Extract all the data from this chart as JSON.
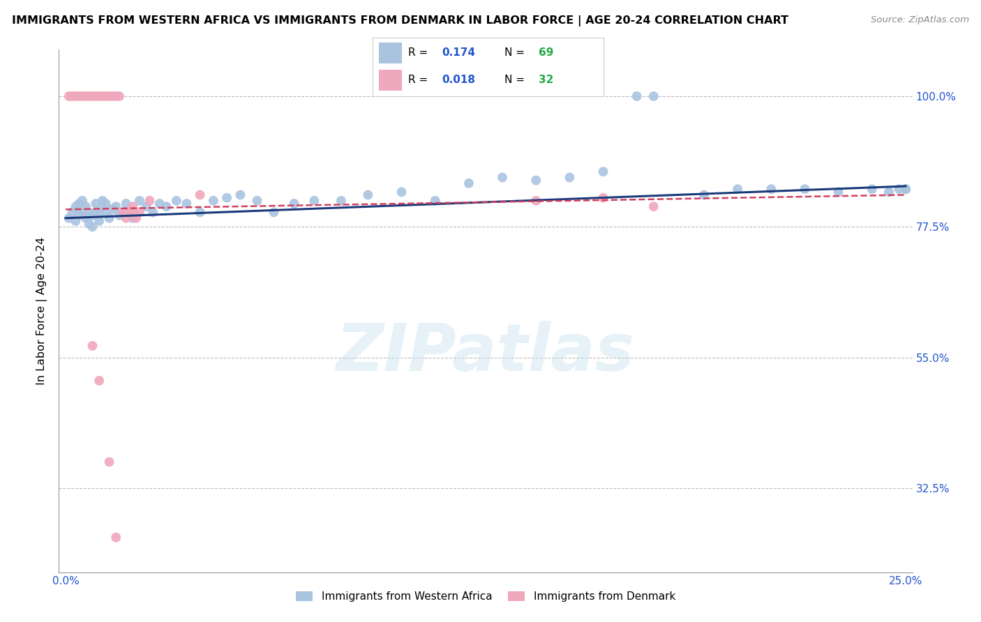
{
  "title": "IMMIGRANTS FROM WESTERN AFRICA VS IMMIGRANTS FROM DENMARK IN LABOR FORCE | AGE 20-24 CORRELATION CHART",
  "source": "Source: ZipAtlas.com",
  "ylabel": "In Labor Force | Age 20-24",
  "blue_color": "#aac4e0",
  "pink_color": "#f0a8bc",
  "blue_line_color": "#1a3a7a",
  "pink_line_color": "#d04060",
  "R_blue": "0.174",
  "N_blue": "69",
  "R_pink": "0.018",
  "N_pink": "32",
  "legend_R_color": "#2255cc",
  "legend_N_color": "#22aa44",
  "watermark": "ZIPatlas",
  "background_color": "#ffffff",
  "grid_color": "#bbbbbb",
  "xlim": [
    0.0,
    0.25
  ],
  "ylim": [
    0.18,
    1.08
  ],
  "ytick_vals": [
    0.325,
    0.55,
    0.775,
    1.0
  ],
  "ytick_labels": [
    "32.5%",
    "55.0%",
    "77.5%",
    "100.0%"
  ],
  "blue_x": [
    0.001,
    0.002,
    0.003,
    0.003,
    0.004,
    0.004,
    0.005,
    0.005,
    0.006,
    0.006,
    0.007,
    0.007,
    0.008,
    0.008,
    0.009,
    0.009,
    0.01,
    0.01,
    0.011,
    0.011,
    0.012,
    0.012,
    0.013,
    0.014,
    0.015,
    0.016,
    0.017,
    0.018,
    0.019,
    0.02,
    0.022,
    0.024,
    0.026,
    0.028,
    0.03,
    0.033,
    0.036,
    0.04,
    0.044,
    0.048,
    0.052,
    0.057,
    0.062,
    0.068,
    0.074,
    0.082,
    0.09,
    0.1,
    0.11,
    0.12,
    0.13,
    0.14,
    0.15,
    0.16,
    0.17,
    0.175,
    0.19,
    0.2,
    0.21,
    0.22,
    0.23,
    0.24,
    0.245,
    0.248,
    0.25,
    0.25,
    0.25,
    0.25,
    0.25
  ],
  "blue_y": [
    0.79,
    0.8,
    0.785,
    0.81,
    0.815,
    0.795,
    0.8,
    0.82,
    0.79,
    0.81,
    0.78,
    0.8,
    0.775,
    0.795,
    0.8,
    0.815,
    0.785,
    0.8,
    0.81,
    0.82,
    0.8,
    0.815,
    0.79,
    0.805,
    0.81,
    0.795,
    0.8,
    0.815,
    0.8,
    0.79,
    0.82,
    0.81,
    0.8,
    0.815,
    0.81,
    0.82,
    0.815,
    0.8,
    0.82,
    0.825,
    0.83,
    0.82,
    0.8,
    0.815,
    0.82,
    0.82,
    0.83,
    0.835,
    0.82,
    0.85,
    0.86,
    0.855,
    0.86,
    0.87,
    1.0,
    1.0,
    0.83,
    0.84,
    0.84,
    0.84,
    0.835,
    0.84,
    0.835,
    0.84,
    0.84,
    0.84,
    0.84,
    0.84,
    0.84
  ],
  "pink_x": [
    0.001,
    0.002,
    0.003,
    0.004,
    0.005,
    0.006,
    0.007,
    0.008,
    0.009,
    0.01,
    0.011,
    0.012,
    0.013,
    0.014,
    0.015,
    0.016,
    0.017,
    0.018,
    0.019,
    0.02,
    0.021,
    0.022,
    0.008,
    0.01,
    0.013,
    0.015,
    0.02,
    0.025,
    0.04,
    0.14,
    0.16,
    0.175
  ],
  "pink_y": [
    1.0,
    1.0,
    1.0,
    1.0,
    1.0,
    1.0,
    1.0,
    1.0,
    1.0,
    1.0,
    1.0,
    1.0,
    1.0,
    1.0,
    1.0,
    1.0,
    0.8,
    0.79,
    0.8,
    0.8,
    0.79,
    0.8,
    0.57,
    0.51,
    0.37,
    0.24,
    0.81,
    0.82,
    0.83,
    0.82,
    0.825,
    0.81
  ],
  "blue_line_x0": 0.0,
  "blue_line_x1": 0.25,
  "blue_line_y0": 0.79,
  "blue_line_y1": 0.845,
  "pink_line_x0": 0.0,
  "pink_line_x1": 0.25,
  "pink_line_y0": 0.805,
  "pink_line_y1": 0.83
}
